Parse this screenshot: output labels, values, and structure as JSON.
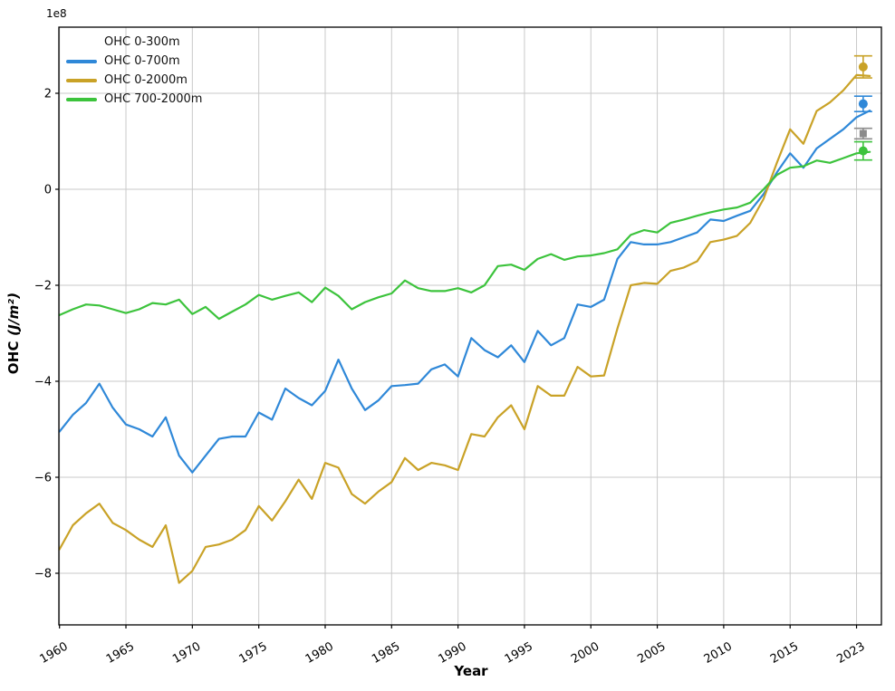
{
  "chart_data": {
    "type": "line",
    "title": "",
    "xlabel": "Year",
    "ylabel_prefix": "OHC ",
    "ylabel_math": "(J/m²)",
    "offset_text": "1e8",
    "x_tick_years": [
      1960,
      1965,
      1970,
      1975,
      1980,
      1985,
      1990,
      1995,
      2000,
      2005,
      2010,
      2015,
      2020
    ],
    "x_tick_labels": [
      "1960",
      "1965",
      "1970",
      "1975",
      "1980",
      "1985",
      "1990",
      "1995",
      "2000",
      "2005",
      "2010",
      "2015",
      "2023"
    ],
    "y_ticks": [
      2,
      0,
      -2,
      -4,
      -6,
      -8
    ],
    "xlim_years": [
      1959.95,
      2021.9
    ],
    "ylim": [
      -9.08,
      3.38
    ],
    "grid": true,
    "legend_position": "upper-left",
    "units": "1e8 J/m2",
    "years": [
      1960,
      1961,
      1962,
      1963,
      1964,
      1965,
      1966,
      1967,
      1968,
      1969,
      1970,
      1971,
      1972,
      1973,
      1974,
      1975,
      1976,
      1977,
      1978,
      1979,
      1980,
      1981,
      1982,
      1983,
      1984,
      1985,
      1986,
      1987,
      1988,
      1989,
      1990,
      1991,
      1992,
      1993,
      1994,
      1995,
      1996,
      1997,
      1998,
      1999,
      2000,
      2001,
      2002,
      2003,
      2004,
      2005,
      2006,
      2007,
      2008,
      2009,
      2010,
      2011,
      2012,
      2013,
      2014,
      2015,
      2016,
      2017,
      2018,
      2019,
      2020,
      2021
    ],
    "series": [
      {
        "name": "OHC 0-300m",
        "color": "none",
        "line_visible": false,
        "values": null
      },
      {
        "name": "OHC 0-700m",
        "color": "#2f88d8",
        "line_visible": true,
        "values": [
          -5.05,
          -4.7,
          -4.45,
          -4.05,
          -4.55,
          -4.9,
          -5.0,
          -5.15,
          -4.75,
          -5.55,
          -5.9,
          -5.55,
          -5.2,
          -5.15,
          -5.15,
          -4.65,
          -4.8,
          -4.15,
          -4.35,
          -4.5,
          -4.2,
          -3.55,
          -4.15,
          -4.6,
          -4.4,
          -4.1,
          -4.08,
          -4.05,
          -3.75,
          -3.65,
          -3.9,
          -3.1,
          -3.35,
          -3.5,
          -3.25,
          -3.6,
          -2.95,
          -3.25,
          -3.1,
          -2.4,
          -2.45,
          -2.3,
          -1.45,
          -1.1,
          -1.15,
          -1.15,
          -1.1,
          -1.0,
          -0.9,
          -0.63,
          -0.66,
          -0.55,
          -0.45,
          -0.1,
          0.35,
          0.75,
          0.45,
          0.85,
          1.05,
          1.25,
          1.5,
          1.64
        ]
      },
      {
        "name": "OHC 0-2000m",
        "color": "#c9a227",
        "line_visible": true,
        "values": [
          -7.5,
          -7.0,
          -6.75,
          -6.55,
          -6.95,
          -7.1,
          -7.3,
          -7.45,
          -7.0,
          -8.2,
          -7.95,
          -7.45,
          -7.4,
          -7.3,
          -7.1,
          -6.6,
          -6.9,
          -6.5,
          -6.05,
          -6.45,
          -5.7,
          -5.8,
          -6.35,
          -6.55,
          -6.3,
          -6.1,
          -5.6,
          -5.85,
          -5.7,
          -5.75,
          -5.85,
          -5.1,
          -5.15,
          -4.75,
          -4.5,
          -5.0,
          -4.1,
          -4.3,
          -4.3,
          -3.7,
          -3.9,
          -3.88,
          -2.9,
          -2.0,
          -1.95,
          -1.97,
          -1.7,
          -1.63,
          -1.5,
          -1.1,
          -1.05,
          -0.97,
          -0.7,
          -0.2,
          0.55,
          1.25,
          0.95,
          1.63,
          1.81,
          2.06,
          2.38,
          2.36
        ]
      },
      {
        "name": "OHC 700-2000m",
        "color": "#3cc33c",
        "line_visible": true,
        "values": [
          -2.62,
          -2.5,
          -2.4,
          -2.42,
          -2.5,
          -2.58,
          -2.5,
          -2.37,
          -2.4,
          -2.3,
          -2.6,
          -2.45,
          -2.7,
          -2.55,
          -2.4,
          -2.2,
          -2.3,
          -2.22,
          -2.15,
          -2.35,
          -2.05,
          -2.22,
          -2.5,
          -2.35,
          -2.25,
          -2.17,
          -1.9,
          -2.06,
          -2.12,
          -2.12,
          -2.06,
          -2.15,
          -2.0,
          -1.6,
          -1.57,
          -1.68,
          -1.45,
          -1.35,
          -1.47,
          -1.4,
          -1.38,
          -1.33,
          -1.25,
          -0.95,
          -0.85,
          -0.9,
          -0.7,
          -0.63,
          -0.55,
          -0.48,
          -0.42,
          -0.38,
          -0.28,
          0.0,
          0.3,
          0.45,
          0.48,
          0.6,
          0.55,
          0.65,
          0.75,
          0.78
        ]
      }
    ],
    "endpoint_markers": {
      "year_position": 2020.5,
      "points": [
        {
          "series": "OHC 0-2000m",
          "value": 2.55,
          "error": 0.23,
          "color": "#c9a227",
          "marker": "circle"
        },
        {
          "series": "OHC 0-700m",
          "value": 1.78,
          "error": 0.16,
          "color": "#2f88d8",
          "marker": "circle"
        },
        {
          "series": "OHC 0-300m",
          "value": 1.16,
          "error": 0.11,
          "color": "#8c8c8c",
          "marker": "square"
        },
        {
          "series": "OHC 700-2000m",
          "value": 0.8,
          "error": 0.19,
          "color": "#3cc33c",
          "marker": "circle"
        }
      ]
    },
    "colors": {
      "grid": "#c9c9c9",
      "spine": "#000000",
      "text": "#000000",
      "background": "#ffffff"
    }
  }
}
